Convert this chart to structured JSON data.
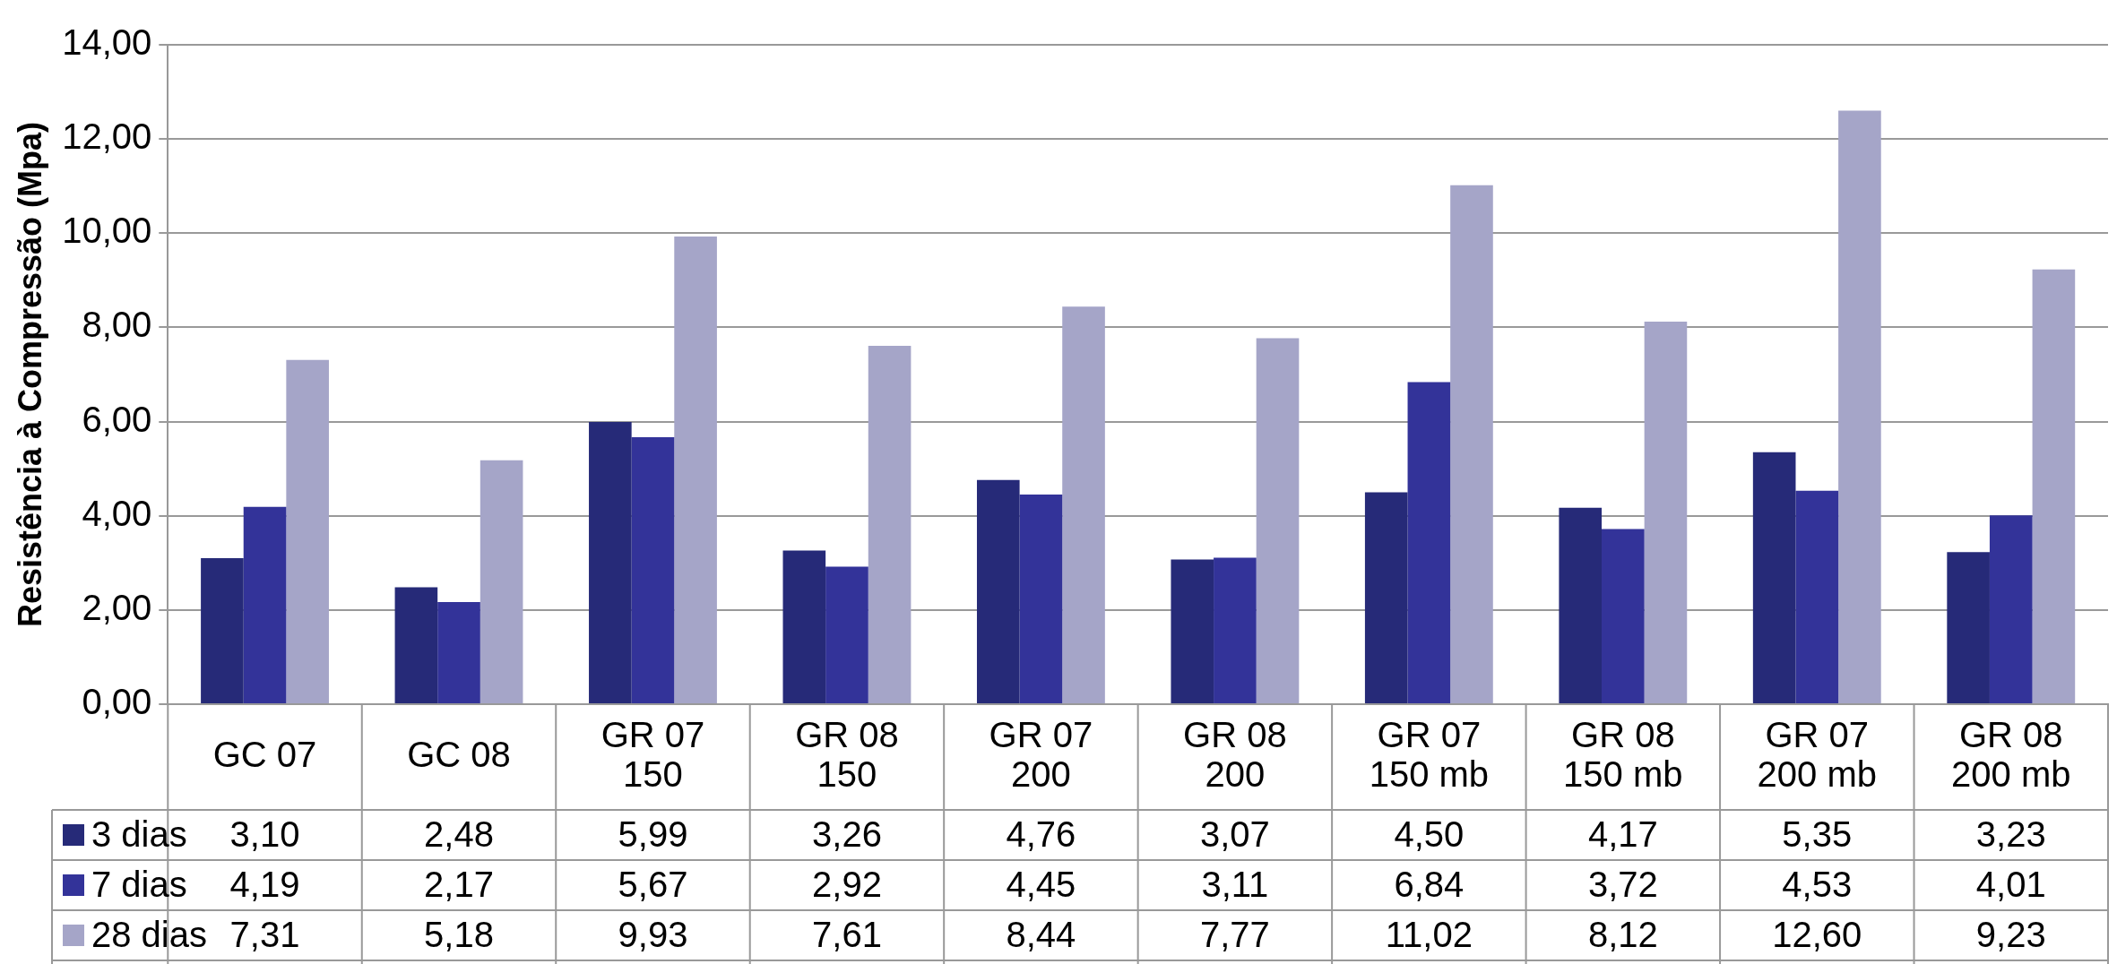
{
  "chart_data": {
    "type": "bar",
    "ylabel": "Resistência à Compressão (Mpa)",
    "categories": [
      "GC 07",
      "GC 08",
      "GR 07 150",
      "GR 08 150",
      "GR 07 200",
      "GR 08 200",
      "GR 07 150 mb",
      "GR 08 150 mb",
      "GR 07 200 mb",
      "GR 08 200 mb"
    ],
    "series": [
      {
        "name": "3 dias",
        "color": "#262a78",
        "values": [
          3.1,
          2.48,
          5.99,
          3.26,
          4.76,
          3.07,
          4.5,
          4.17,
          5.35,
          3.23
        ],
        "value_labels": [
          "3,10",
          "2,48",
          "5,99",
          "3,26",
          "4,76",
          "3,07",
          "4,50",
          "4,17",
          "5,35",
          "3,23"
        ]
      },
      {
        "name": "7 dias",
        "color": "#333399",
        "values": [
          4.19,
          2.17,
          5.67,
          2.92,
          4.45,
          3.11,
          6.84,
          3.72,
          4.53,
          4.01
        ],
        "value_labels": [
          "4,19",
          "2,17",
          "5,67",
          "2,92",
          "4,45",
          "3,11",
          "6,84",
          "3,72",
          "4,53",
          "4,01"
        ]
      },
      {
        "name": "28 dias",
        "color": "#a5a5c8",
        "values": [
          7.31,
          5.18,
          9.93,
          7.61,
          8.44,
          7.77,
          11.02,
          8.12,
          12.6,
          9.23
        ],
        "value_labels": [
          "7,31",
          "5,18",
          "9,93",
          "7,61",
          "8,44",
          "7,77",
          "11,02",
          "8,12",
          "12,60",
          "9,23"
        ]
      }
    ],
    "ylim": [
      0,
      14
    ],
    "yticks": [
      {
        "value": 0,
        "label": "0,00"
      },
      {
        "value": 2,
        "label": "2,00"
      },
      {
        "value": 4,
        "label": "4,00"
      },
      {
        "value": 6,
        "label": "6,00"
      },
      {
        "value": 8,
        "label": "8,00"
      },
      {
        "value": 10,
        "label": "10,00"
      },
      {
        "value": 12,
        "label": "12,00"
      },
      {
        "value": 14,
        "label": "14,00"
      }
    ],
    "grid": "y",
    "legend": "bottom left"
  }
}
